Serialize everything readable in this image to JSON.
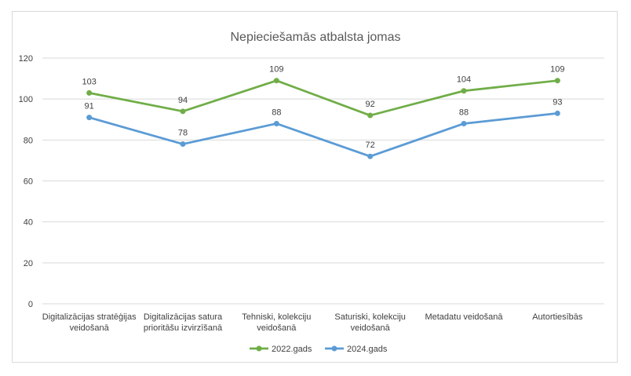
{
  "chart_data": {
    "type": "line",
    "title": "Nepieciešamās atbalsta jomas",
    "xlabel": "",
    "ylabel": "",
    "ylim": [
      0,
      120
    ],
    "yticks": [
      0,
      20,
      40,
      60,
      80,
      100,
      120
    ],
    "grid": true,
    "legend_position": "bottom",
    "categories": [
      [
        "Digitalizācijas stratēģijas",
        "veidošanā"
      ],
      [
        "Digitalizācijas satura",
        "prioritāšu izvirzīšanā"
      ],
      [
        "Tehniski, kolekciju",
        "veidošanā"
      ],
      [
        "Saturiski, kolekciju",
        "veidošanā"
      ],
      [
        "Metadatu veidošanā"
      ],
      [
        "Autortiesībās"
      ]
    ],
    "series": [
      {
        "name": "2022.gads",
        "color": "#70ad47",
        "values": [
          103,
          94,
          109,
          92,
          104,
          109
        ]
      },
      {
        "name": "2024.gads",
        "color": "#5b9bd5",
        "values": [
          91,
          78,
          88,
          72,
          88,
          93
        ]
      }
    ]
  }
}
